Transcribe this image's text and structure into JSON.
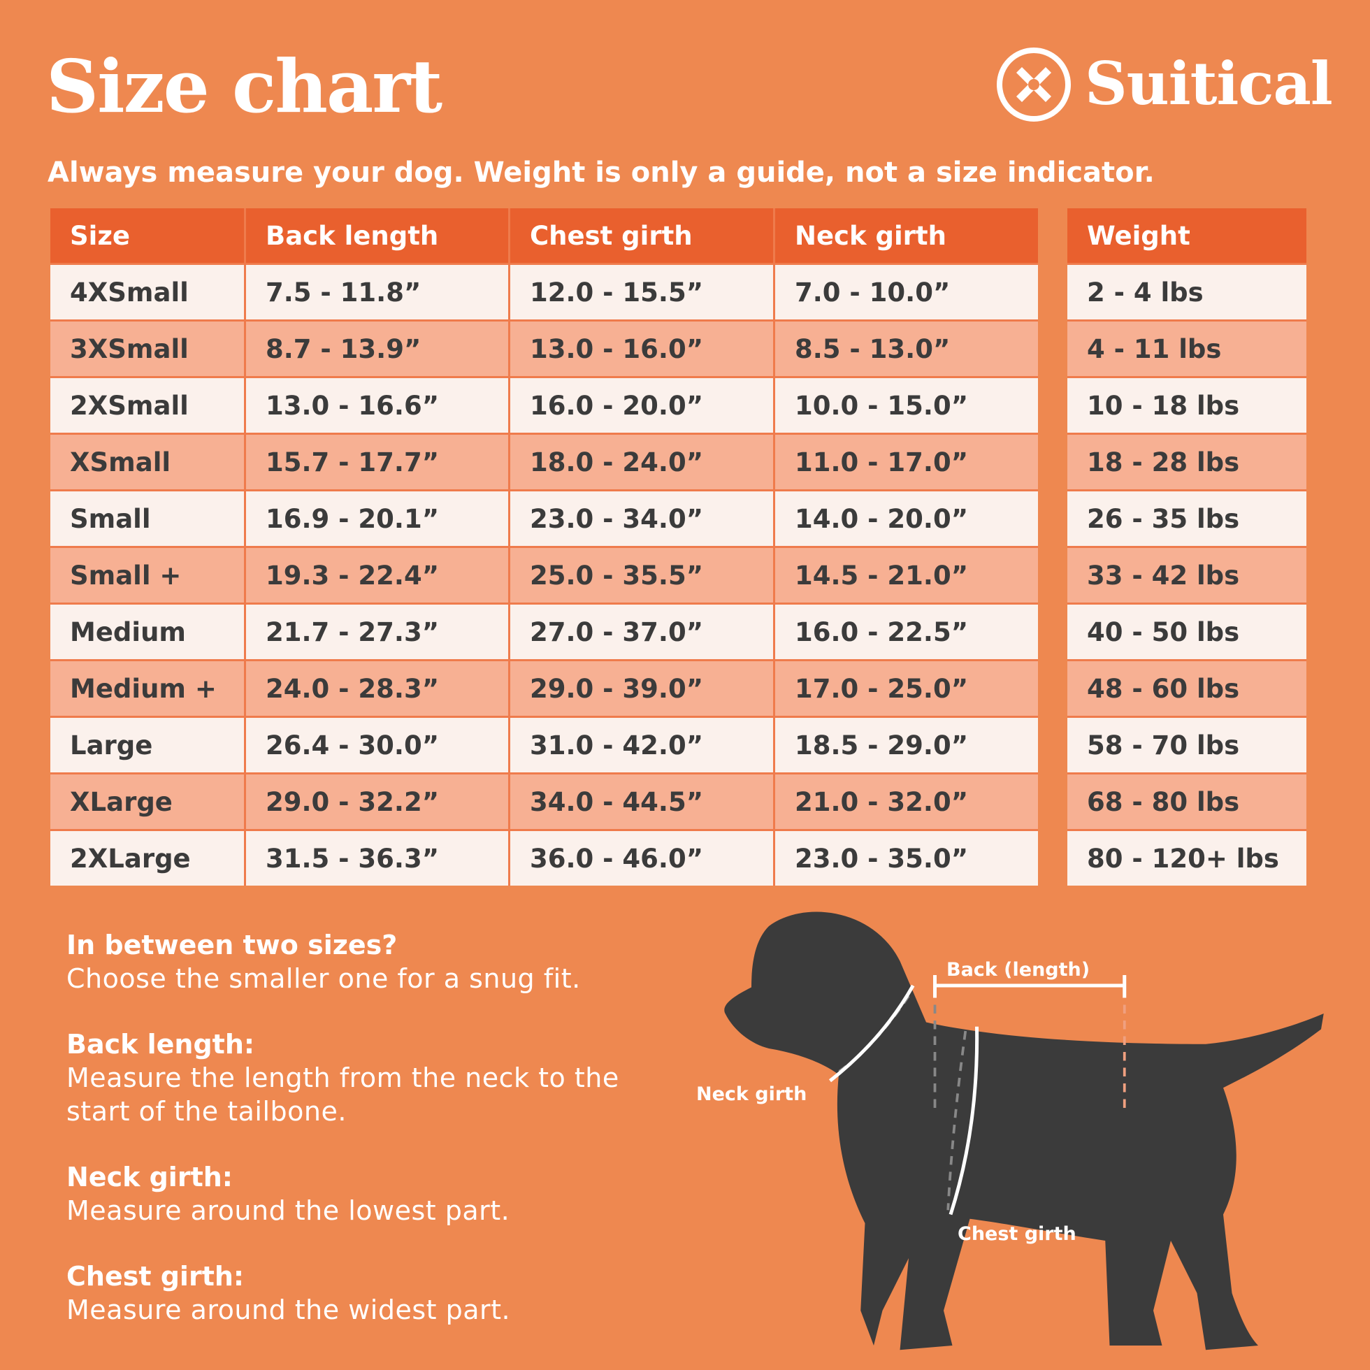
{
  "header": {
    "title": "Size chart",
    "brand": "Suitical"
  },
  "subtitle": "Always measure your dog. Weight is only a guide, not a size indicator.",
  "table": {
    "columns": [
      "Size",
      "Back length",
      "Chest girth",
      "Neck girth",
      "Weight"
    ],
    "rows": [
      [
        "4XSmall",
        "7.5 - 11.8”",
        "12.0 - 15.5”",
        "7.0 - 10.0”",
        "2 - 4 lbs"
      ],
      [
        "3XSmall",
        "8.7 - 13.9”",
        "13.0 - 16.0”",
        "8.5 - 13.0”",
        "4 - 11 lbs"
      ],
      [
        "2XSmall",
        "13.0 - 16.6”",
        "16.0 - 20.0”",
        "10.0 - 15.0”",
        "10 - 18 lbs"
      ],
      [
        "XSmall",
        "15.7 - 17.7”",
        "18.0 - 24.0”",
        "11.0 - 17.0”",
        "18 - 28 lbs"
      ],
      [
        "Small",
        "16.9 - 20.1”",
        "23.0 - 34.0”",
        "14.0 - 20.0”",
        "26 - 35 lbs"
      ],
      [
        "Small +",
        "19.3 - 22.4”",
        "25.0 - 35.5”",
        "14.5 - 21.0”",
        "33 - 42 lbs"
      ],
      [
        "Medium",
        "21.7 - 27.3”",
        "27.0 - 37.0”",
        "16.0 - 22.5”",
        "40 - 50 lbs"
      ],
      [
        "Medium +",
        "24.0 - 28.3”",
        "29.0 - 39.0”",
        "17.0 - 25.0”",
        "48 - 60 lbs"
      ],
      [
        "Large",
        "26.4 - 30.0”",
        "31.0 - 42.0”",
        "18.5 - 29.0”",
        "58 - 70 lbs"
      ],
      [
        "XLarge",
        "29.0 - 32.2”",
        "34.0 - 44.5”",
        "21.0 - 32.0”",
        "68 - 80 lbs"
      ],
      [
        "2XLarge",
        "31.5 - 36.3”",
        "36.0 - 46.0”",
        "23.0 - 35.0”",
        "80 - 120+ lbs"
      ]
    ]
  },
  "notes": [
    {
      "heading": "In between two sizes?",
      "text": "Choose the smaller one for a snug fit."
    },
    {
      "heading": "Back length:",
      "text": "Measure the length from the neck to the start of the tailbone."
    },
    {
      "heading": "Neck girth:",
      "text": "Measure around the lowest part."
    },
    {
      "heading": "Chest girth:",
      "text": "Measure around the widest part."
    }
  ],
  "diagram": {
    "back": "Back (length)",
    "neck": "Neck girth",
    "chest": "Chest girth"
  }
}
